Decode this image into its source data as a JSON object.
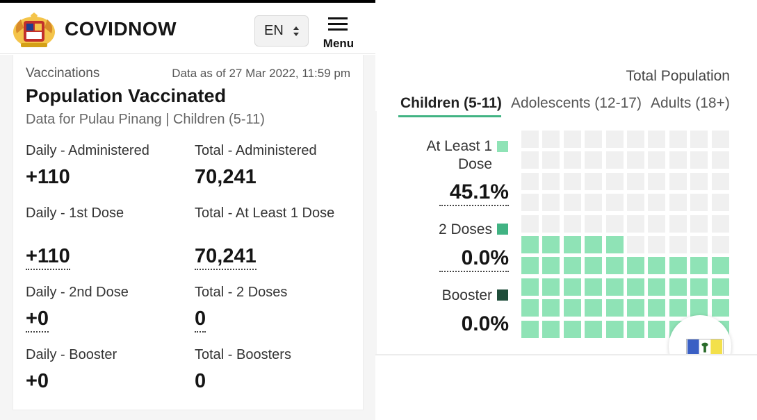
{
  "header": {
    "brand": "COVIDNOW",
    "language": "EN",
    "menu_label": "Menu",
    "icons": {
      "logo": "malaysia-coat-of-arms-icon",
      "caret": "up-down-caret-icon",
      "menu": "hamburger-icon"
    }
  },
  "card": {
    "section_label": "Vaccinations",
    "data_as_of": "Data as of 27 Mar 2022, 11:59 pm",
    "title": "Population Vaccinated",
    "subtitle": "Data for Pulau Pinang | Children (5-11)",
    "stats": [
      {
        "label": "Daily - Administered",
        "value": "+110"
      },
      {
        "label": "Total - Administered",
        "value": "70,241"
      },
      {
        "label": "Daily - 1st Dose",
        "value": "+110"
      },
      {
        "label": "Total - At Least 1 Dose",
        "value": "70,241"
      },
      {
        "label": "Daily - 2nd Dose",
        "value": "+0"
      },
      {
        "label": "Total - 2 Doses",
        "value": "0"
      },
      {
        "label": "Daily - Booster",
        "value": "+0"
      },
      {
        "label": "Total - Boosters",
        "value": "0"
      }
    ]
  },
  "population": {
    "heading": "Total Population",
    "tabs": [
      {
        "label": "Children (5-11)",
        "active": true
      },
      {
        "label": "Adolescents (12-17)",
        "active": false
      },
      {
        "label": "Adults (18+)",
        "active": false
      }
    ],
    "legend": [
      {
        "label": "At Least 1 Dose",
        "percent": "45.1%",
        "color": "#8fe3b6"
      },
      {
        "label": "2 Doses",
        "percent": "0.0%",
        "color": "#41b383"
      },
      {
        "label": "Booster",
        "percent": "0.0%",
        "color": "#1f4d3a"
      }
    ],
    "waffle": {
      "filled_fraction": 0.451,
      "grid": 10,
      "empty_color": "#f0f0f0",
      "fill_color": "#8fe3b6"
    }
  },
  "floating_button": {
    "icon": "penang-flag-icon"
  }
}
